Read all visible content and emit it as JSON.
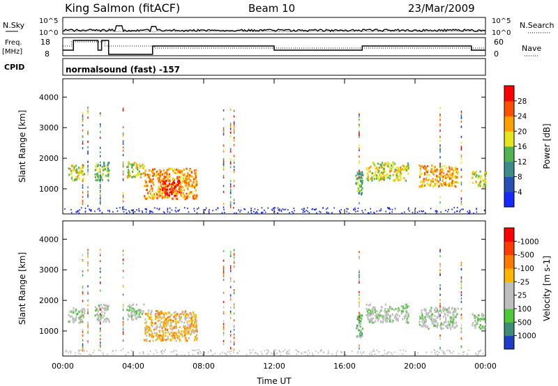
{
  "header": {
    "station": "King Salmon (fitACF)",
    "beam": "Beam 10",
    "date": "23/Mar/2009"
  },
  "panels": {
    "nsky": {
      "label": "N.Sky",
      "right_label": "N.Search",
      "tick_top": "10^5",
      "tick_bottom": "10^0"
    },
    "freq": {
      "label_line1": "Freq.",
      "label_line2": "[MHz]",
      "tick_top": "18",
      "tick_bottom": "8",
      "right_label": "Nave",
      "right_tick_top": "60",
      "right_tick_bottom": "0"
    },
    "cpid": {
      "label": "CPID",
      "text": "normalsound (fast) -157"
    }
  },
  "chart_data": [
    {
      "type": "heatmap",
      "name": "power",
      "ylabel": "Slant Range [km]",
      "xlabel": "",
      "x_ticks": [
        "00:00",
        "04:00",
        "08:00",
        "12:00",
        "16:00",
        "20:00",
        "00:00"
      ],
      "x_hours": [
        0,
        4,
        8,
        12,
        16,
        20,
        24
      ],
      "xlim": [
        0,
        24
      ],
      "ylim": [
        180,
        4600
      ],
      "y_ticks": [
        1000,
        2000,
        3000,
        4000
      ],
      "colorbar": {
        "label": "Power [dB]",
        "ticks": [
          "4",
          "8",
          "12",
          "16",
          "20",
          "24",
          "28"
        ],
        "colors": [
          "#1428ff",
          "#2850b4",
          "#3c8c8c",
          "#50b450",
          "#e6e61e",
          "#ffa000",
          "#ff5000",
          "#ff0000"
        ]
      },
      "regions": [
        {
          "t0": 0.3,
          "t1": 1.2,
          "r0": 1300,
          "r1": 1800,
          "level": 4
        },
        {
          "t0": 1.8,
          "t1": 2.6,
          "r0": 1300,
          "r1": 1900,
          "level": 3
        },
        {
          "t0": 3.6,
          "t1": 4.6,
          "r0": 1400,
          "r1": 1900,
          "level": 4
        },
        {
          "t0": 4.6,
          "t1": 7.6,
          "r0": 700,
          "r1": 1700,
          "level": 5
        },
        {
          "t0": 5.6,
          "t1": 6.6,
          "r0": 800,
          "r1": 1300,
          "level": 7
        },
        {
          "t0": 16.6,
          "t1": 17.0,
          "r0": 800,
          "r1": 1600,
          "level": 3
        },
        {
          "t0": 17.2,
          "t1": 19.6,
          "r0": 1300,
          "r1": 1900,
          "level": 4
        },
        {
          "t0": 20.2,
          "t1": 22.4,
          "r0": 1100,
          "r1": 1800,
          "level": 5
        },
        {
          "t0": 23.2,
          "t1": 24.0,
          "r0": 1100,
          "r1": 1600,
          "level": 4
        }
      ]
    },
    {
      "type": "heatmap",
      "name": "velocity",
      "ylabel": "Slant Range [km]",
      "xlabel": "Time UT",
      "x_ticks": [
        "00:00",
        "04:00",
        "08:00",
        "12:00",
        "16:00",
        "20:00",
        "00:00"
      ],
      "x_hours": [
        0,
        4,
        8,
        12,
        16,
        20,
        24
      ],
      "xlim": [
        0,
        24
      ],
      "ylim": [
        180,
        4600
      ],
      "y_ticks": [
        1000,
        2000,
        3000,
        4000
      ],
      "colorbar": {
        "label": "Velocity [m s-1]",
        "ticks": [
          "1000",
          "500",
          "100",
          "25",
          "-25",
          "-100",
          "-500",
          "-1000"
        ],
        "colors": [
          "#1e3cc8",
          "#3c8c78",
          "#50c83c",
          "#bebebe",
          "#bebebe",
          "#ffb400",
          "#ff7800",
          "#ff3c00",
          "#ff0000"
        ]
      },
      "regions": [
        {
          "t0": 0.3,
          "t1": 1.2,
          "r0": 1300,
          "r1": 1800,
          "level": 3
        },
        {
          "t0": 1.8,
          "t1": 2.6,
          "r0": 1300,
          "r1": 1900,
          "level": 3
        },
        {
          "t0": 3.6,
          "t1": 4.6,
          "r0": 1400,
          "r1": 1900,
          "level": 3
        },
        {
          "t0": 4.6,
          "t1": 7.6,
          "r0": 700,
          "r1": 1700,
          "level": 5
        },
        {
          "t0": 16.6,
          "t1": 17.0,
          "r0": 800,
          "r1": 1600,
          "level": 2
        },
        {
          "t0": 17.2,
          "t1": 19.6,
          "r0": 1300,
          "r1": 1900,
          "level": 3
        },
        {
          "t0": 20.2,
          "t1": 22.4,
          "r0": 1100,
          "r1": 1800,
          "level": 3
        },
        {
          "t0": 23.2,
          "t1": 24.0,
          "r0": 1100,
          "r1": 1600,
          "level": 3
        }
      ]
    }
  ]
}
